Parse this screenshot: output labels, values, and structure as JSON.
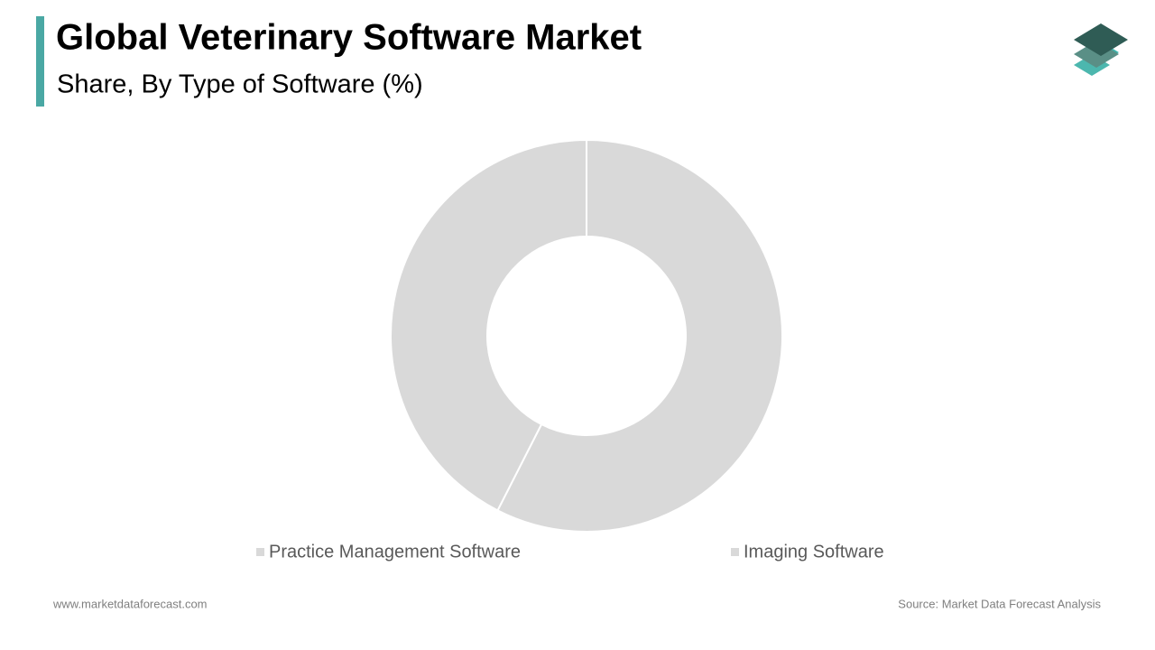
{
  "chart_data": {
    "type": "donut",
    "title": "Global Veterinary Software Market",
    "subtitle": "Share, By Type of Software (%)",
    "categories": [
      "Practice Management Software",
      "Imaging Software"
    ],
    "values": [
      57.5,
      42.5
    ],
    "colors": [
      "#d9d9d9",
      "#d9d9d9"
    ],
    "legend": "bottom"
  },
  "footer": {
    "website": "www.marketdataforecast.com",
    "source": "Source: Market Data Forecast Analysis"
  }
}
